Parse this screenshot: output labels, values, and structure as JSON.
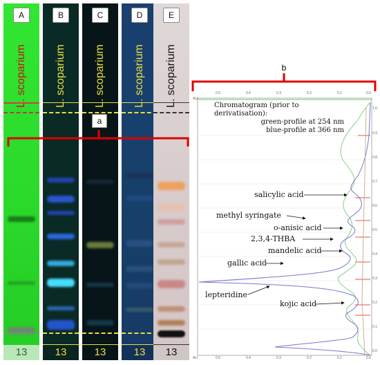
{
  "lanes": [
    {
      "letter": "A",
      "species": "L. scoparium",
      "number": "13",
      "species_color": "#cc1111",
      "number_color": "#3a5a3a"
    },
    {
      "letter": "B",
      "species": "L. scoparium",
      "number": "13",
      "species_color": "#e8e040",
      "number_color": "#e8e040"
    },
    {
      "letter": "C",
      "species": "L. scoparium",
      "number": "13",
      "species_color": "#e8e040",
      "number_color": "#e8e040"
    },
    {
      "letter": "D",
      "species": "L. scoparium",
      "number": "13",
      "species_color": "#e8e040",
      "number_color": "#e8e040"
    },
    {
      "letter": "E",
      "species": "L. scoparium",
      "number": "13",
      "species_color": "#111111",
      "number_color": "#111111"
    }
  ],
  "bracket_a": {
    "letter": "a"
  },
  "bracket_b": {
    "letter": "b"
  },
  "chromatogram": {
    "title_line1": "Chromatogram (prior to derivatisation):",
    "title_line2": "green-profile at 254 nm",
    "title_line3": "blue-profile at 366 nm",
    "au_label": "AU",
    "x_ticks": [
      "0.5",
      "0.4",
      "0.3",
      "0.2",
      "0.1",
      "0.0"
    ],
    "y_ticks": [
      "1.0",
      "0.9",
      "0.8",
      "0.7",
      "0.6",
      "0.5",
      "0.4",
      "0.3",
      "0.2",
      "0.1",
      "0.0"
    ]
  },
  "peaks": [
    {
      "name": "salicylic acid"
    },
    {
      "name": "methyl syringate"
    },
    {
      "name": "o-anisic acid"
    },
    {
      "name": "2,3,4-THBA"
    },
    {
      "name": "mandelic acid"
    },
    {
      "name": "gallic acid"
    },
    {
      "name": "lepteridine"
    },
    {
      "name": "kojic acid"
    }
  ],
  "colors": {
    "red": "#e00000",
    "green": "#66cc66",
    "blue": "#6666cc"
  }
}
